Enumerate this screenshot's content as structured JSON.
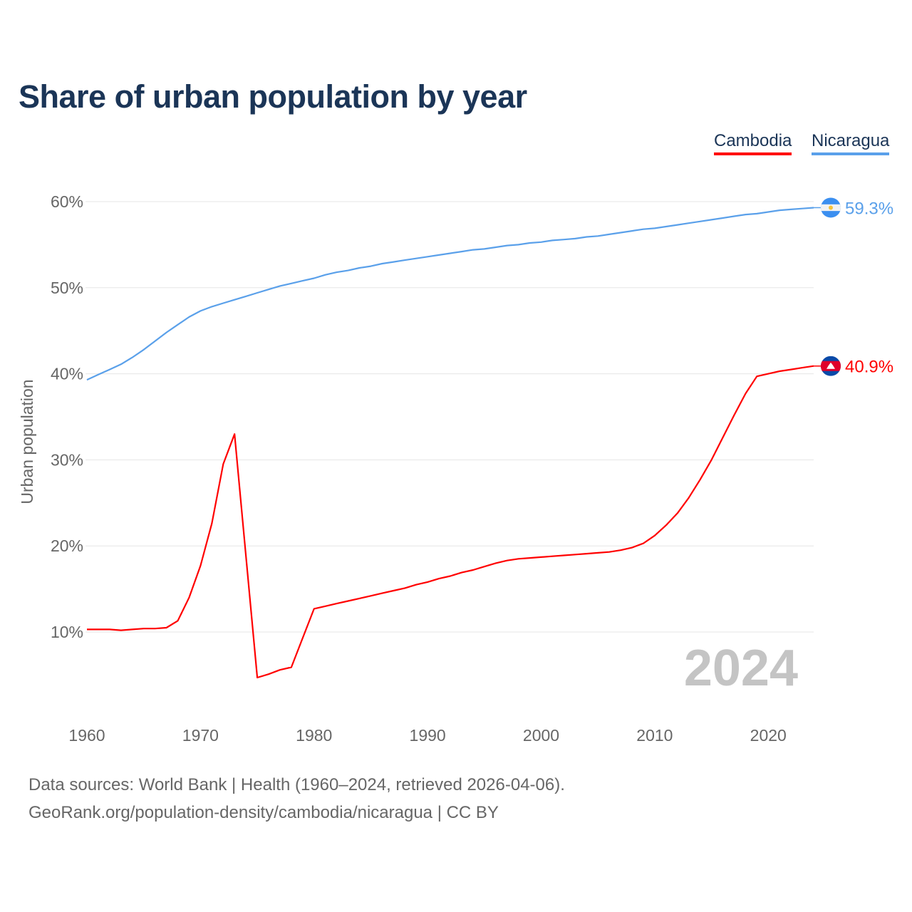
{
  "chart_data": {
    "type": "line",
    "title": "Share of urban population by year",
    "xlabel": "",
    "ylabel": "Urban population",
    "xlim": [
      1960,
      2024
    ],
    "ylim": [
      0,
      65
    ],
    "yticks": [
      10,
      20,
      30,
      40,
      50,
      60
    ],
    "ytick_labels": [
      "10%",
      "20%",
      "30%",
      "40%",
      "50%",
      "60%"
    ],
    "xticks": [
      1960,
      1970,
      1980,
      1990,
      2000,
      2010,
      2020
    ],
    "xtick_labels": [
      "1960",
      "1970",
      "1980",
      "1990",
      "2000",
      "2010",
      "2020"
    ],
    "grid": true,
    "legend_position": "top-right",
    "year_watermark": "2024",
    "x_start": 1960,
    "series": [
      {
        "name": "Cambodia",
        "color": "#ff0000",
        "end_label": "40.9%",
        "flag": "cambodia-flag",
        "values": [
          10.3,
          10.3,
          10.3,
          10.2,
          10.3,
          10.4,
          10.4,
          10.5,
          11.3,
          14.0,
          17.7,
          22.6,
          29.5,
          33.0,
          18.9,
          4.7,
          5.1,
          5.6,
          5.9,
          9.3,
          12.7,
          13.0,
          13.3,
          13.6,
          13.9,
          14.2,
          14.5,
          14.8,
          15.1,
          15.5,
          15.8,
          16.2,
          16.5,
          16.9,
          17.2,
          17.6,
          18.0,
          18.3,
          18.5,
          18.6,
          18.7,
          18.8,
          18.9,
          19.0,
          19.1,
          19.2,
          19.3,
          19.5,
          19.8,
          20.3,
          21.2,
          22.4,
          23.8,
          25.6,
          27.7,
          30.0,
          32.6,
          35.2,
          37.7,
          39.7,
          40.0,
          40.3,
          40.5,
          40.7,
          40.9
        ]
      },
      {
        "name": "Nicaragua",
        "color": "#5aa0ea",
        "end_label": "59.3%",
        "flag": "nicaragua-flag",
        "values": [
          39.3,
          39.9,
          40.5,
          41.1,
          41.9,
          42.8,
          43.8,
          44.8,
          45.7,
          46.6,
          47.3,
          47.8,
          48.2,
          48.6,
          49.0,
          49.4,
          49.8,
          50.2,
          50.5,
          50.8,
          51.1,
          51.5,
          51.8,
          52.0,
          52.3,
          52.5,
          52.8,
          53.0,
          53.2,
          53.4,
          53.6,
          53.8,
          54.0,
          54.2,
          54.4,
          54.5,
          54.7,
          54.9,
          55.0,
          55.2,
          55.3,
          55.5,
          55.6,
          55.7,
          55.9,
          56.0,
          56.2,
          56.4,
          56.6,
          56.8,
          56.9,
          57.1,
          57.3,
          57.5,
          57.7,
          57.9,
          58.1,
          58.3,
          58.5,
          58.6,
          58.8,
          59.0,
          59.1,
          59.2,
          59.3
        ]
      }
    ]
  },
  "footer": {
    "line1": "Data sources: World Bank | Health (1960–2024, retrieved 2026-04-06).",
    "line2": "GeoRank.org/population-density/cambodia/nicaragua | CC BY"
  }
}
